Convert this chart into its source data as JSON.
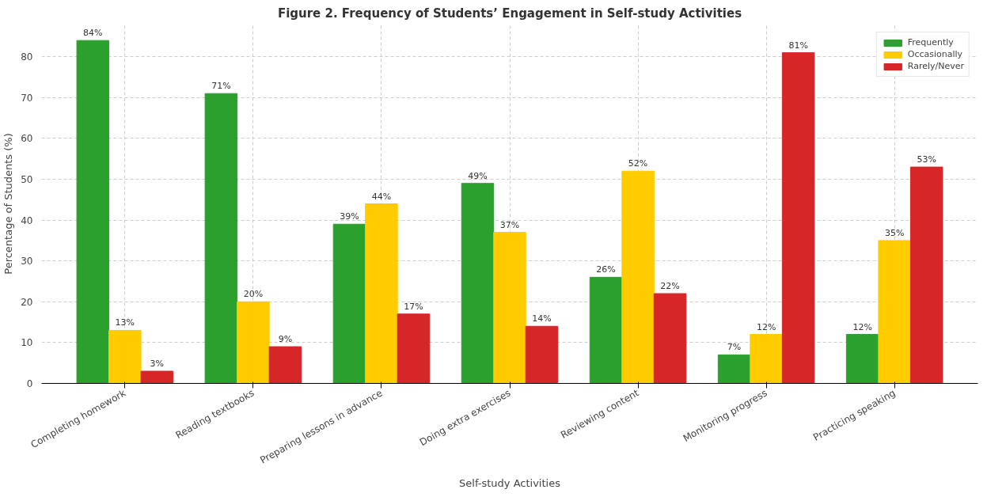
{
  "chart_data": {
    "type": "bar",
    "title": "Figure 2. Frequency of Students’ Engagement in Self-study Activities",
    "xlabel": "Self-study Activities",
    "ylabel": "Percentage of Students (%)",
    "categories": [
      "Completing homework",
      "Reading textbooks",
      "Preparing lessons in advance",
      "Doing extra exercises",
      "Reviewing content",
      "Monitoring progress",
      "Practicing speaking"
    ],
    "series": [
      {
        "name": "Frequently",
        "color": "#2ca02c",
        "values": [
          84,
          71,
          39,
          49,
          26,
          7,
          12
        ],
        "value_labels": [
          "84%",
          "71%",
          "39%",
          "49%",
          "26%",
          "7%",
          "12%"
        ]
      },
      {
        "name": "Occasionally",
        "color": "#ffcc00",
        "values": [
          13,
          20,
          44,
          37,
          52,
          12,
          35
        ],
        "value_labels": [
          "13%",
          "20%",
          "44%",
          "37%",
          "52%",
          "12%",
          "35%"
        ]
      },
      {
        "name": "Rarely/Never",
        "color": "#d62728",
        "values": [
          3,
          9,
          17,
          14,
          22,
          81,
          53
        ],
        "value_labels": [
          "3%",
          "9%",
          "17%",
          "14%",
          "22%",
          "81%",
          "53%"
        ]
      }
    ],
    "ylim": [
      0,
      88
    ],
    "yticks": [
      0,
      10,
      20,
      30,
      40,
      50,
      60,
      70,
      80
    ],
    "grid": true,
    "legend": "top right"
  }
}
